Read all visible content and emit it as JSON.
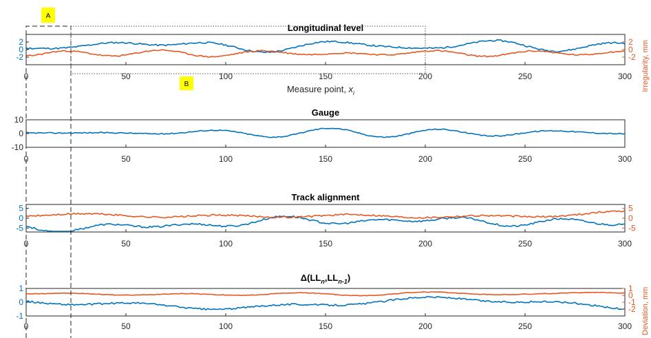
{
  "chart_data": [
    {
      "type": "line",
      "title": "Longitudinal level",
      "xlabel": "Measure point, x_i",
      "xlim": [
        0,
        300
      ],
      "xticks": [
        0,
        50,
        100,
        150,
        200,
        250,
        300
      ],
      "ylim_left": [
        -4,
        4
      ],
      "yticks_left": [
        "2",
        "0",
        "-2"
      ],
      "ylim_right": [
        -4,
        4
      ],
      "yticks_right": [
        "2",
        "0",
        "-2"
      ],
      "ylabel_right": "Irregularity, mm",
      "series": [
        {
          "axis": "left",
          "color": "#0072BD",
          "amp": 1.2,
          "offset": 1.0,
          "seed": 11
        },
        {
          "axis": "right",
          "color": "#E9561F",
          "amp": 1.0,
          "offset": -1.0,
          "seed": 23
        }
      ]
    },
    {
      "type": "line",
      "title": "Gauge",
      "xlim": [
        0,
        300
      ],
      "xticks": [
        0,
        50,
        100,
        150,
        200,
        250,
        300
      ],
      "ylim_left": [
        -10,
        10
      ],
      "yticks_left": [
        "10",
        "0",
        "-10"
      ],
      "series": [
        {
          "axis": "left",
          "color": "#0072BD",
          "amp": 2.2,
          "offset": 0.5,
          "seed": 37
        }
      ]
    },
    {
      "type": "line",
      "title": "Track alignment",
      "xlim": [
        0,
        300
      ],
      "xticks": [
        0,
        50,
        100,
        150,
        200,
        250,
        300
      ],
      "ylim_left": [
        -7,
        7
      ],
      "yticks_left": [
        "5",
        "0",
        "-5"
      ],
      "ylim_right": [
        -7,
        7
      ],
      "yticks_right": [
        "5",
        "0",
        "-5"
      ],
      "series": [
        {
          "axis": "left",
          "color": "#0072BD",
          "amp": 2.6,
          "offset": -2.5,
          "seed": 53
        },
        {
          "axis": "right",
          "color": "#E9561F",
          "amp": 2.4,
          "offset": 1.5,
          "seed": 71
        }
      ]
    },
    {
      "type": "line",
      "title_main": "Δ(LL",
      "title_sub1": "n",
      "title_mid": ",LL",
      "title_sub2": "n-1",
      "title_end": ")",
      "xlim": [
        0,
        300
      ],
      "xticks": [
        0,
        50,
        100,
        150,
        200,
        250,
        300
      ],
      "ylim_left": [
        -1,
        1
      ],
      "yticks_left": [
        "1",
        "0",
        "-1"
      ],
      "ylim_right": [
        -3,
        1
      ],
      "yticks_right": [
        "1",
        "0",
        "-1",
        "-2"
      ],
      "ylabel_right": "Deviation, mm",
      "series": [
        {
          "axis": "left",
          "color": "#0072BD",
          "amp": 0.35,
          "offset": -0.1,
          "seed": 89
        },
        {
          "axis": "right",
          "color": "#E9561F",
          "amp": 0.25,
          "offset": 0.2,
          "seed": 97
        }
      ]
    }
  ],
  "markers": {
    "a": "A",
    "b": "B"
  },
  "xlabel_prefix": "Measure point, ",
  "xlabel_var": "x",
  "xlabel_sub": "i"
}
